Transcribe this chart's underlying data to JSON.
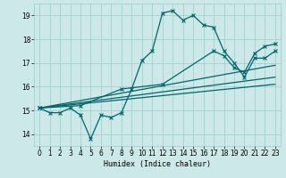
{
  "xlabel": "Humidex (Indice chaleur)",
  "xlim": [
    -0.5,
    23.5
  ],
  "ylim": [
    13.5,
    19.5
  ],
  "yticks": [
    14,
    15,
    16,
    17,
    18,
    19
  ],
  "xticks": [
    0,
    1,
    2,
    3,
    4,
    5,
    6,
    7,
    8,
    9,
    10,
    11,
    12,
    13,
    14,
    15,
    16,
    17,
    18,
    19,
    20,
    21,
    22,
    23
  ],
  "bg_color": "#cce8e8",
  "grid_color": "#99cccc",
  "line_color": "#006666",
  "series1_x": [
    0,
    1,
    2,
    3,
    4,
    5,
    6,
    7,
    8,
    9,
    10,
    11,
    12,
    13,
    14,
    15,
    16,
    17,
    18,
    19,
    20,
    21,
    22,
    23
  ],
  "series1_y": [
    15.1,
    14.9,
    14.9,
    15.1,
    14.8,
    13.8,
    14.8,
    14.7,
    14.9,
    15.9,
    17.1,
    17.5,
    19.1,
    19.2,
    18.8,
    19.0,
    18.6,
    18.5,
    17.5,
    17.0,
    16.4,
    17.2,
    17.2,
    17.5
  ],
  "series2_x": [
    0,
    4,
    8,
    12,
    17,
    18,
    19,
    20,
    21,
    22,
    23
  ],
  "series2_y": [
    15.1,
    15.2,
    15.9,
    16.1,
    17.5,
    17.3,
    16.8,
    16.6,
    17.4,
    17.7,
    17.8
  ],
  "series3_x": [
    0,
    23
  ],
  "series3_y": [
    15.1,
    16.9
  ],
  "series4_x": [
    0,
    23
  ],
  "series4_y": [
    15.1,
    16.4
  ],
  "series5_x": [
    0,
    23
  ],
  "series5_y": [
    15.1,
    16.1
  ]
}
